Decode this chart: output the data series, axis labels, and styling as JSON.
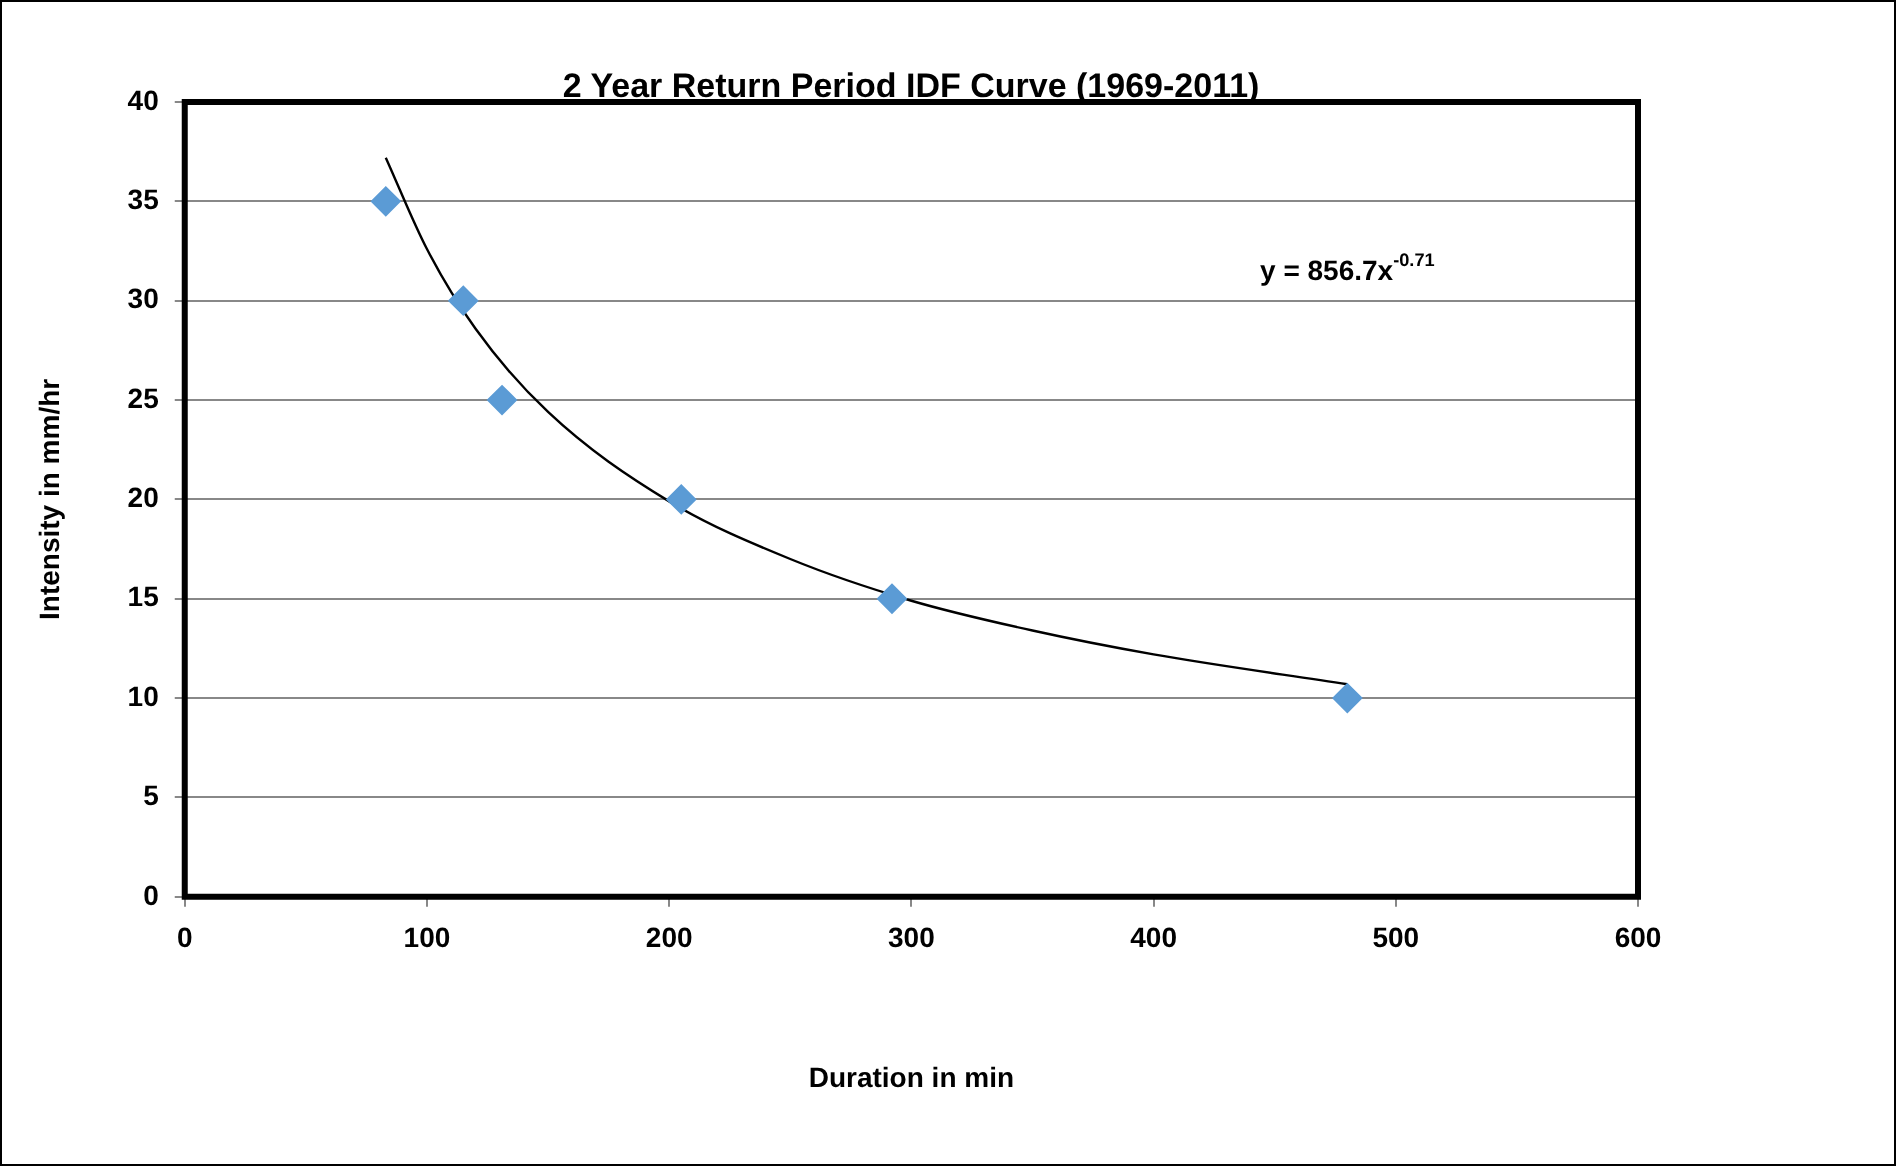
{
  "chart_data": {
    "type": "scatter",
    "title": "2 Year Return Period IDF Curve (1969-2011)",
    "xlabel": "Duration in min",
    "ylabel": "Intensity in mm/hr",
    "series": [
      {
        "color": "#5b9bd5",
        "marker": "diamond",
        "x": [
          83,
          115,
          131,
          205,
          292,
          480
        ],
        "values": [
          35,
          30,
          25,
          20,
          15,
          10
        ]
      },
      {
        "type": "line",
        "color": "#000000",
        "marker": "none",
        "x": [
          83,
          100,
          120,
          150,
          200,
          250,
          300,
          350,
          400,
          480
        ],
        "values": [
          37.2,
          32.6,
          28.6,
          24.4,
          19.9,
          17.0,
          14.9,
          13.4,
          12.2,
          10.7
        ]
      }
    ],
    "xlim": [
      0,
      600
    ],
    "xticks": [
      0,
      100,
      200,
      300,
      400,
      500,
      600
    ],
    "ylim": [
      0,
      40
    ],
    "yticks": [
      0,
      5,
      10,
      15,
      20,
      25,
      30,
      35,
      40
    ],
    "grid": "y",
    "annotations": [
      "y = 856.7x$^{-0.71}$"
    ]
  }
}
